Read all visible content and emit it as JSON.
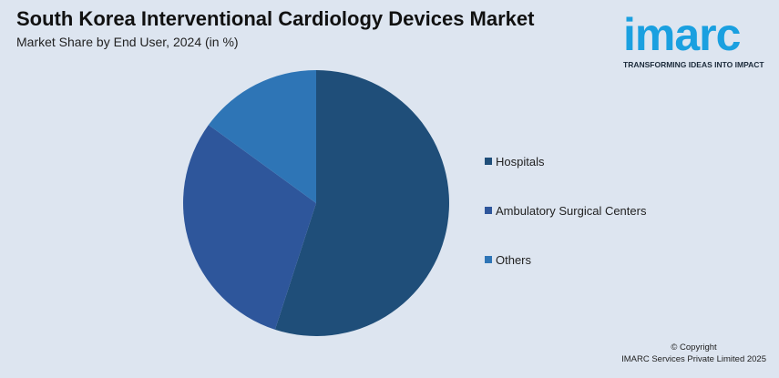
{
  "header": {
    "title": "South Korea Interventional Cardiology Devices Market",
    "subtitle": "Market Share by End User, 2024 (in %)"
  },
  "logo": {
    "word": "imarc",
    "tagline": "TRANSFORMING IDEAS INTO IMPACT",
    "color": "#1aa0e0"
  },
  "chart_data": {
    "type": "pie",
    "categories": [
      "Hospitals",
      "Ambulatory Surgical Centers",
      "Others"
    ],
    "values": [
      55,
      30,
      15
    ],
    "colors": [
      "#1f4e79",
      "#2e569b",
      "#2e75b6"
    ],
    "legend_position": "right"
  },
  "footer": {
    "copyright_line1": "© Copyright",
    "copyright_line2": "IMARC Services Private Limited 2025"
  }
}
